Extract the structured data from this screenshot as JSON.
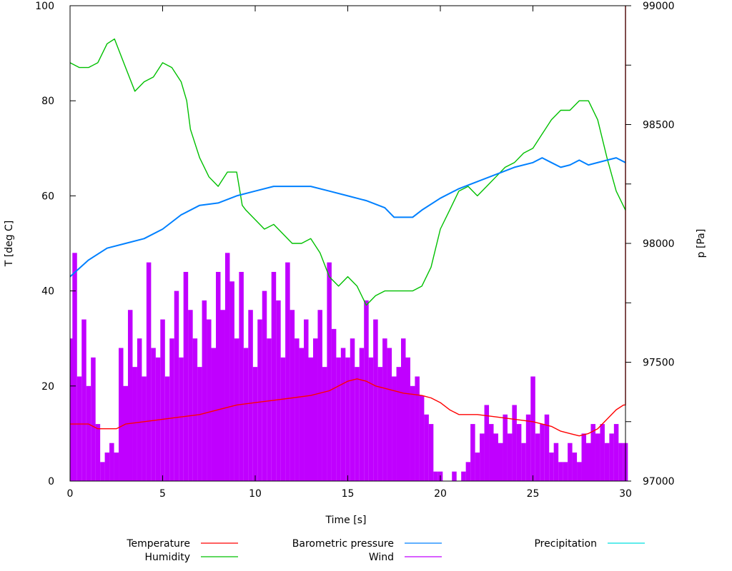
{
  "chart_data": {
    "type": "line",
    "xlabel": "Time [s]",
    "ylabel": "T [deg C]",
    "y2label": "p [Pa]",
    "xlim": [
      0,
      30
    ],
    "ylim": [
      0,
      100
    ],
    "y2lim": [
      97000,
      99000
    ],
    "xticks": [
      0,
      5,
      10,
      15,
      20,
      25,
      30
    ],
    "yticks": [
      0,
      20,
      40,
      60,
      80,
      100
    ],
    "y2ticks": [
      97000,
      97500,
      98000,
      98500,
      99000
    ],
    "y2minor_step": 250,
    "grid": false,
    "legend_placement": "bottom",
    "series": [
      {
        "name": "Temperature",
        "color": "#ff0000",
        "axis": "y",
        "style": "line",
        "points": [
          [
            0,
            12
          ],
          [
            1,
            12
          ],
          [
            1.5,
            11
          ],
          [
            2,
            11
          ],
          [
            2.5,
            11
          ],
          [
            3,
            12
          ],
          [
            4,
            12.5
          ],
          [
            5,
            13
          ],
          [
            6,
            13.5
          ],
          [
            7,
            14
          ],
          [
            8,
            15
          ],
          [
            9,
            16
          ],
          [
            10,
            16.5
          ],
          [
            11,
            17
          ],
          [
            12,
            17.5
          ],
          [
            13,
            18
          ],
          [
            14,
            19
          ],
          [
            14.5,
            20
          ],
          [
            15,
            21
          ],
          [
            15.5,
            21.5
          ],
          [
            16,
            21
          ],
          [
            16.5,
            20
          ],
          [
            17,
            19.5
          ],
          [
            18,
            18.5
          ],
          [
            19,
            18
          ],
          [
            19.5,
            17.5
          ],
          [
            20,
            16.5
          ],
          [
            20.5,
            15
          ],
          [
            21,
            14
          ],
          [
            22,
            14
          ],
          [
            23,
            13.5
          ],
          [
            24,
            13
          ],
          [
            25,
            12.5
          ],
          [
            26,
            11.5
          ],
          [
            26.5,
            10.5
          ],
          [
            27,
            10
          ],
          [
            27.5,
            9.5
          ],
          [
            28,
            10
          ],
          [
            28.5,
            11
          ],
          [
            29,
            13
          ],
          [
            29.5,
            15
          ],
          [
            29.9,
            16
          ],
          [
            30,
            16
          ],
          [
            30,
            100
          ]
        ]
      },
      {
        "name": "Humidity",
        "color": "#00c000",
        "axis": "y",
        "style": "line",
        "points": [
          [
            0,
            88
          ],
          [
            0.5,
            87
          ],
          [
            1,
            87
          ],
          [
            1.5,
            88
          ],
          [
            2,
            92
          ],
          [
            2.4,
            93
          ],
          [
            3,
            87
          ],
          [
            3.5,
            82
          ],
          [
            4,
            84
          ],
          [
            4.5,
            85
          ],
          [
            5,
            88
          ],
          [
            5.5,
            87
          ],
          [
            6,
            84
          ],
          [
            6.3,
            80
          ],
          [
            6.5,
            74
          ],
          [
            7,
            68
          ],
          [
            7.5,
            64
          ],
          [
            8,
            62
          ],
          [
            8.5,
            65
          ],
          [
            9,
            65
          ],
          [
            9.3,
            58
          ],
          [
            9.5,
            57
          ],
          [
            10,
            55
          ],
          [
            10.5,
            53
          ],
          [
            11,
            54
          ],
          [
            11.5,
            52
          ],
          [
            12,
            50
          ],
          [
            12.5,
            50
          ],
          [
            13,
            51
          ],
          [
            13.5,
            48
          ],
          [
            14,
            43
          ],
          [
            14.5,
            41
          ],
          [
            15,
            43
          ],
          [
            15.5,
            41
          ],
          [
            16,
            37
          ],
          [
            16.5,
            39
          ],
          [
            17,
            40
          ],
          [
            17.5,
            40
          ],
          [
            18,
            40
          ],
          [
            18.5,
            40
          ],
          [
            19,
            41
          ],
          [
            19.5,
            45
          ],
          [
            20,
            53
          ],
          [
            20.5,
            57
          ],
          [
            21,
            61
          ],
          [
            21.5,
            62
          ],
          [
            22,
            60
          ],
          [
            22.5,
            62
          ],
          [
            23,
            64
          ],
          [
            23.5,
            66
          ],
          [
            24,
            67
          ],
          [
            24.5,
            69
          ],
          [
            25,
            70
          ],
          [
            25.5,
            73
          ],
          [
            26,
            76
          ],
          [
            26.5,
            78
          ],
          [
            27,
            78
          ],
          [
            27.5,
            80
          ],
          [
            28,
            80
          ],
          [
            28.5,
            76
          ],
          [
            29,
            68
          ],
          [
            29.5,
            61
          ],
          [
            30,
            57
          ]
        ]
      },
      {
        "name": "Barometric pressure",
        "color": "#0080ff",
        "axis": "y2",
        "style": "line",
        "points": [
          [
            0,
            97860
          ],
          [
            1,
            97930
          ],
          [
            2,
            97980
          ],
          [
            3,
            98000
          ],
          [
            4,
            98020
          ],
          [
            5,
            98060
          ],
          [
            6,
            98120
          ],
          [
            7,
            98160
          ],
          [
            8,
            98170
          ],
          [
            9,
            98200
          ],
          [
            10,
            98220
          ],
          [
            11,
            98240
          ],
          [
            12,
            98240
          ],
          [
            13,
            98240
          ],
          [
            14,
            98220
          ],
          [
            15,
            98200
          ],
          [
            16,
            98180
          ],
          [
            17,
            98150
          ],
          [
            17.5,
            98110
          ],
          [
            18,
            98110
          ],
          [
            18.5,
            98110
          ],
          [
            19,
            98140
          ],
          [
            20,
            98190
          ],
          [
            21,
            98230
          ],
          [
            22,
            98260
          ],
          [
            23,
            98290
          ],
          [
            24,
            98320
          ],
          [
            25,
            98340
          ],
          [
            25.5,
            98360
          ],
          [
            26,
            98340
          ],
          [
            26.5,
            98320
          ],
          [
            27,
            98330
          ],
          [
            27.5,
            98350
          ],
          [
            28,
            98330
          ],
          [
            29,
            98350
          ],
          [
            29.5,
            98360
          ],
          [
            30,
            98340
          ]
        ]
      },
      {
        "name": "Wind",
        "color": "#c000ff",
        "axis": "y",
        "style": "impulses",
        "points": [
          [
            0,
            30
          ],
          [
            0.25,
            48
          ],
          [
            0.5,
            22
          ],
          [
            0.75,
            34
          ],
          [
            1,
            20
          ],
          [
            1.25,
            26
          ],
          [
            1.5,
            12
          ],
          [
            1.75,
            4
          ],
          [
            2,
            6
          ],
          [
            2.25,
            8
          ],
          [
            2.5,
            6
          ],
          [
            2.75,
            28
          ],
          [
            3,
            20
          ],
          [
            3.25,
            36
          ],
          [
            3.5,
            24
          ],
          [
            3.75,
            30
          ],
          [
            4,
            22
          ],
          [
            4.25,
            46
          ],
          [
            4.5,
            28
          ],
          [
            4.75,
            26
          ],
          [
            5,
            34
          ],
          [
            5.25,
            22
          ],
          [
            5.5,
            30
          ],
          [
            5.75,
            40
          ],
          [
            6,
            26
          ],
          [
            6.25,
            44
          ],
          [
            6.5,
            36
          ],
          [
            6.75,
            30
          ],
          [
            7,
            24
          ],
          [
            7.25,
            38
          ],
          [
            7.5,
            34
          ],
          [
            7.75,
            28
          ],
          [
            8,
            44
          ],
          [
            8.25,
            36
          ],
          [
            8.5,
            48
          ],
          [
            8.75,
            42
          ],
          [
            9,
            30
          ],
          [
            9.25,
            44
          ],
          [
            9.5,
            28
          ],
          [
            9.75,
            36
          ],
          [
            10,
            24
          ],
          [
            10.25,
            34
          ],
          [
            10.5,
            40
          ],
          [
            10.75,
            30
          ],
          [
            11,
            44
          ],
          [
            11.25,
            38
          ],
          [
            11.5,
            26
          ],
          [
            11.75,
            46
          ],
          [
            12,
            36
          ],
          [
            12.25,
            30
          ],
          [
            12.5,
            28
          ],
          [
            12.75,
            34
          ],
          [
            13,
            26
          ],
          [
            13.25,
            30
          ],
          [
            13.5,
            36
          ],
          [
            13.75,
            24
          ],
          [
            14,
            46
          ],
          [
            14.25,
            32
          ],
          [
            14.5,
            26
          ],
          [
            14.75,
            28
          ],
          [
            15,
            26
          ],
          [
            15.25,
            30
          ],
          [
            15.5,
            24
          ],
          [
            15.75,
            28
          ],
          [
            16,
            38
          ],
          [
            16.25,
            26
          ],
          [
            16.5,
            34
          ],
          [
            16.75,
            24
          ],
          [
            17,
            30
          ],
          [
            17.25,
            28
          ],
          [
            17.5,
            22
          ],
          [
            17.75,
            24
          ],
          [
            18,
            30
          ],
          [
            18.25,
            26
          ],
          [
            18.5,
            20
          ],
          [
            18.75,
            22
          ],
          [
            19,
            18
          ],
          [
            19.25,
            14
          ],
          [
            19.5,
            12
          ],
          [
            19.75,
            2
          ],
          [
            20,
            2
          ],
          [
            20.25,
            0
          ],
          [
            20.5,
            0
          ],
          [
            20.75,
            2
          ],
          [
            21,
            0
          ],
          [
            21.25,
            2
          ],
          [
            21.5,
            4
          ],
          [
            21.75,
            12
          ],
          [
            22,
            6
          ],
          [
            22.25,
            10
          ],
          [
            22.5,
            16
          ],
          [
            22.75,
            12
          ],
          [
            23,
            10
          ],
          [
            23.25,
            8
          ],
          [
            23.5,
            14
          ],
          [
            23.75,
            10
          ],
          [
            24,
            16
          ],
          [
            24.25,
            12
          ],
          [
            24.5,
            8
          ],
          [
            24.75,
            14
          ],
          [
            25,
            22
          ],
          [
            25.25,
            10
          ],
          [
            25.5,
            12
          ],
          [
            25.75,
            14
          ],
          [
            26,
            6
          ],
          [
            26.25,
            8
          ],
          [
            26.5,
            4
          ],
          [
            26.75,
            4
          ],
          [
            27,
            8
          ],
          [
            27.25,
            6
          ],
          [
            27.5,
            4
          ],
          [
            27.75,
            10
          ],
          [
            28,
            8
          ],
          [
            28.25,
            12
          ],
          [
            28.5,
            10
          ],
          [
            28.75,
            12
          ],
          [
            29,
            8
          ],
          [
            29.25,
            10
          ],
          [
            29.5,
            12
          ],
          [
            29.75,
            8
          ],
          [
            30,
            8
          ]
        ]
      },
      {
        "name": "Precipitation",
        "color": "#00e0e0",
        "axis": "y",
        "style": "line",
        "points": []
      }
    ]
  }
}
